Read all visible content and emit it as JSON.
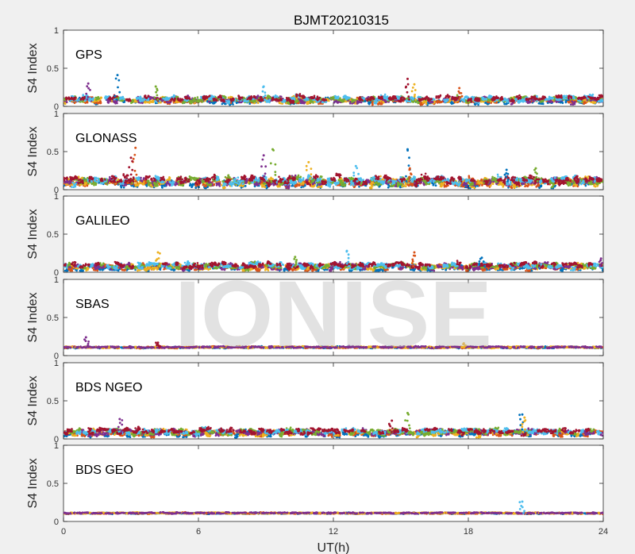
{
  "chart_data": {
    "type": "scatter",
    "title": "BJMT20210315",
    "xlabel": "UT(h)",
    "ylabel": "S4 Index",
    "xlim": [
      0,
      24
    ],
    "xticks": [
      "0",
      "6",
      "12",
      "18",
      "24"
    ],
    "ylim": [
      0,
      1
    ],
    "yticks": [
      "0",
      "0.5",
      "1"
    ],
    "grid": false,
    "watermark": "IONISE",
    "series_colors": [
      "#0072BD",
      "#D95319",
      "#EDB120",
      "#7E2F8E",
      "#77AC30",
      "#4DBEEE",
      "#A2142F"
    ],
    "panels": [
      {
        "name": "GPS",
        "label": "GPS",
        "baseline": 0.09,
        "spread": 0.05,
        "sats": 7,
        "spikes": [
          [
            2.4,
            0.41
          ],
          [
            1.1,
            0.3
          ],
          [
            15.3,
            0.36
          ],
          [
            15.6,
            0.29
          ],
          [
            8.9,
            0.26
          ],
          [
            17.6,
            0.24
          ],
          [
            4.1,
            0.26
          ]
        ]
      },
      {
        "name": "GLONASS",
        "label": "GLONASS",
        "baseline": 0.11,
        "spread": 0.07,
        "sats": 7,
        "spikes": [
          [
            3.2,
            0.55
          ],
          [
            9.3,
            0.53
          ],
          [
            15.3,
            0.53
          ],
          [
            8.9,
            0.45
          ],
          [
            3.0,
            0.42
          ],
          [
            10.9,
            0.36
          ],
          [
            13.0,
            0.31
          ],
          [
            15.4,
            0.28
          ],
          [
            21.0,
            0.28
          ],
          [
            19.7,
            0.26
          ]
        ]
      },
      {
        "name": "GALILEO",
        "label": "GALILEO",
        "baseline": 0.08,
        "spread": 0.05,
        "sats": 7,
        "spikes": [
          [
            4.2,
            0.26
          ],
          [
            12.6,
            0.28
          ],
          [
            15.6,
            0.26
          ],
          [
            10.3,
            0.2
          ],
          [
            18.6,
            0.19
          ],
          [
            23.9,
            0.18
          ]
        ]
      },
      {
        "name": "SBAS",
        "label": "SBAS",
        "baseline": 0.11,
        "spread": 0.015,
        "sats": 4,
        "spikes": [
          [
            1.0,
            0.24
          ],
          [
            4.2,
            0.17
          ],
          [
            17.8,
            0.16
          ]
        ]
      },
      {
        "name": "BDS NGEO",
        "label": "BDS NGEO",
        "baseline": 0.09,
        "spread": 0.05,
        "sats": 7,
        "spikes": [
          [
            15.3,
            0.34
          ],
          [
            20.4,
            0.32
          ],
          [
            2.5,
            0.26
          ],
          [
            14.6,
            0.24
          ],
          [
            20.5,
            0.28
          ]
        ]
      },
      {
        "name": "BDS GEO",
        "label": "BDS GEO",
        "baseline": 0.11,
        "spread": 0.012,
        "sats": 4,
        "spikes": [
          [
            20.4,
            0.26
          ]
        ]
      }
    ]
  }
}
